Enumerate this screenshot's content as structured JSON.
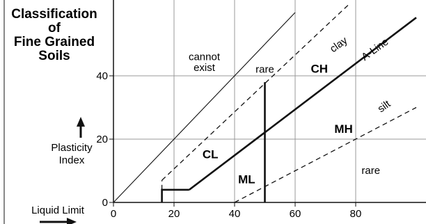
{
  "chart_data": {
    "type": "line",
    "title": [
      "Classification",
      "of",
      "Fine Grained",
      "Soils"
    ],
    "xlabel": "Liquid Limit",
    "ylabel": [
      "Plasticity",
      "Index"
    ],
    "xlim": [
      0,
      100
    ],
    "ylim": [
      0,
      48
    ],
    "x_ticks": [
      0,
      20,
      40,
      60,
      80
    ],
    "y_ticks": [
      0,
      20,
      40
    ],
    "grid": true,
    "series": [
      {
        "name": "A-Line",
        "style": "solid-thick",
        "points": [
          [
            25,
            4
          ],
          [
            100,
            58.4
          ]
        ]
      },
      {
        "name": "",
        "style": "solid-thin",
        "points": [
          [
            0,
            0
          ],
          [
            60,
            60
          ]
        ]
      },
      {
        "name": "",
        "style": "dashed",
        "points": [
          [
            16,
            7
          ],
          [
            78,
            62.8
          ]
        ]
      },
      {
        "name": "",
        "style": "dashed",
        "points": [
          [
            40,
            0
          ],
          [
            100,
            30
          ]
        ]
      },
      {
        "name": "",
        "style": "solid-thick",
        "points": [
          [
            50,
            0
          ],
          [
            50,
            38
          ]
        ]
      },
      {
        "name": "",
        "style": "solid-thick",
        "points": [
          [
            16,
            0
          ],
          [
            16,
            4
          ],
          [
            25,
            4
          ]
        ]
      },
      {
        "name": "",
        "style": "dashed",
        "points": [
          [
            16,
            4
          ],
          [
            16,
            7
          ]
        ]
      }
    ],
    "regions": [
      {
        "label": "cannot",
        "x": 30,
        "y": 45,
        "style": "small"
      },
      {
        "label": "exist",
        "x": 30,
        "y": 41.5,
        "style": "small"
      },
      {
        "label": "rare",
        "x": 50,
        "y": 41,
        "style": "small"
      },
      {
        "label": "CH",
        "x": 68,
        "y": 41,
        "style": "bold"
      },
      {
        "label": "clay",
        "x": 75,
        "y": 49,
        "style": "small-rot"
      },
      {
        "label": "A-Line",
        "x": 87,
        "y": 47.5,
        "style": "small-rot"
      },
      {
        "label": "silt",
        "x": 90,
        "y": 29.5,
        "style": "small-rot"
      },
      {
        "label": "MH",
        "x": 76,
        "y": 22,
        "style": "bold"
      },
      {
        "label": "CL",
        "x": 32,
        "y": 14,
        "style": "bold"
      },
      {
        "label": "ML",
        "x": 44,
        "y": 6,
        "style": "bold"
      },
      {
        "label": "rare",
        "x": 85,
        "y": 9,
        "style": "small"
      }
    ],
    "legend": "none"
  },
  "colors": {
    "line": "#111111",
    "grid": "#999999",
    "text": "#111111"
  }
}
